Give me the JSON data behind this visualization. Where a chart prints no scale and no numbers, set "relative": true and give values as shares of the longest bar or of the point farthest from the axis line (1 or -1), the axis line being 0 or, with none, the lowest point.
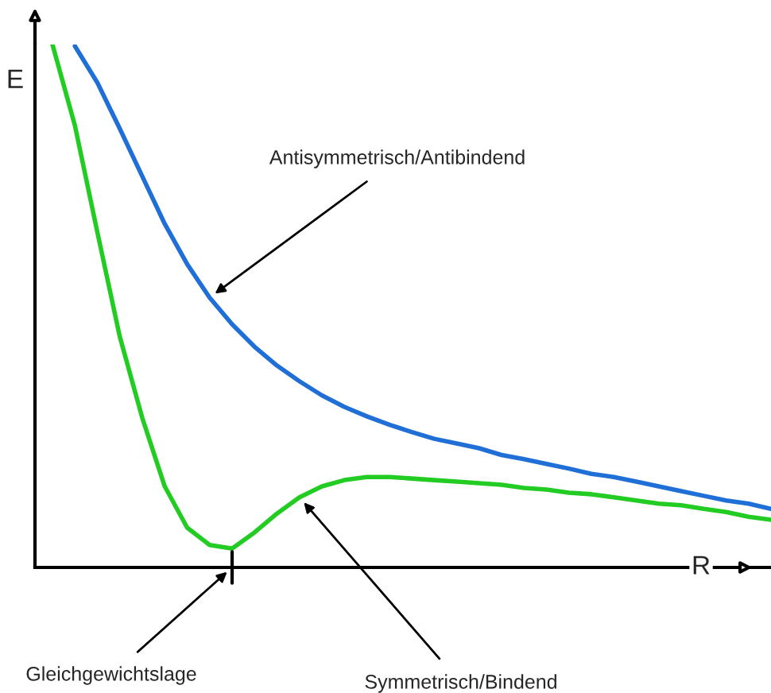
{
  "chart_data": {
    "type": "line",
    "relative": true,
    "xlabel": "R",
    "ylabel": "E",
    "categories": [
      null,
      null,
      null,
      null,
      null,
      null,
      null,
      null,
      null,
      null,
      null,
      null,
      null,
      null,
      null,
      null,
      null,
      null,
      null,
      null,
      null,
      null,
      null,
      null,
      null,
      null,
      null,
      null,
      null,
      null,
      null,
      null,
      null
    ],
    "series": [
      {
        "color": "#1f6fd6",
        "values": [
          null,
          0.997,
          0.927,
          0.839,
          0.748,
          0.657,
          0.58,
          0.516,
          0.465,
          0.422,
          0.386,
          0.356,
          0.329,
          0.307,
          0.289,
          0.273,
          0.259,
          0.246,
          0.237,
          0.228,
          0.215,
          0.207,
          0.198,
          0.189,
          0.179,
          0.173,
          0.164,
          0.155,
          0.146,
          0.137,
          0.128,
          0.122,
          0.112
        ]
      },
      {
        "color": "#22cc22",
        "values": [
          1.0,
          0.845,
          0.641,
          0.441,
          0.286,
          0.155,
          0.076,
          0.043,
          0.036,
          0.067,
          0.103,
          0.134,
          0.155,
          0.167,
          0.173,
          0.173,
          0.17,
          0.167,
          0.164,
          0.161,
          0.158,
          0.152,
          0.149,
          0.143,
          0.14,
          0.134,
          0.128,
          0.122,
          0.119,
          0.112,
          0.106,
          0.097,
          0.091
        ]
      }
    ],
    "annotations": [
      "Antisymmetrisch/Antibindend",
      "Symmetrisch/Bindend",
      "Gleichgewichtslage"
    ],
    "grid": false,
    "marker": "none",
    "line_style": "solid"
  }
}
